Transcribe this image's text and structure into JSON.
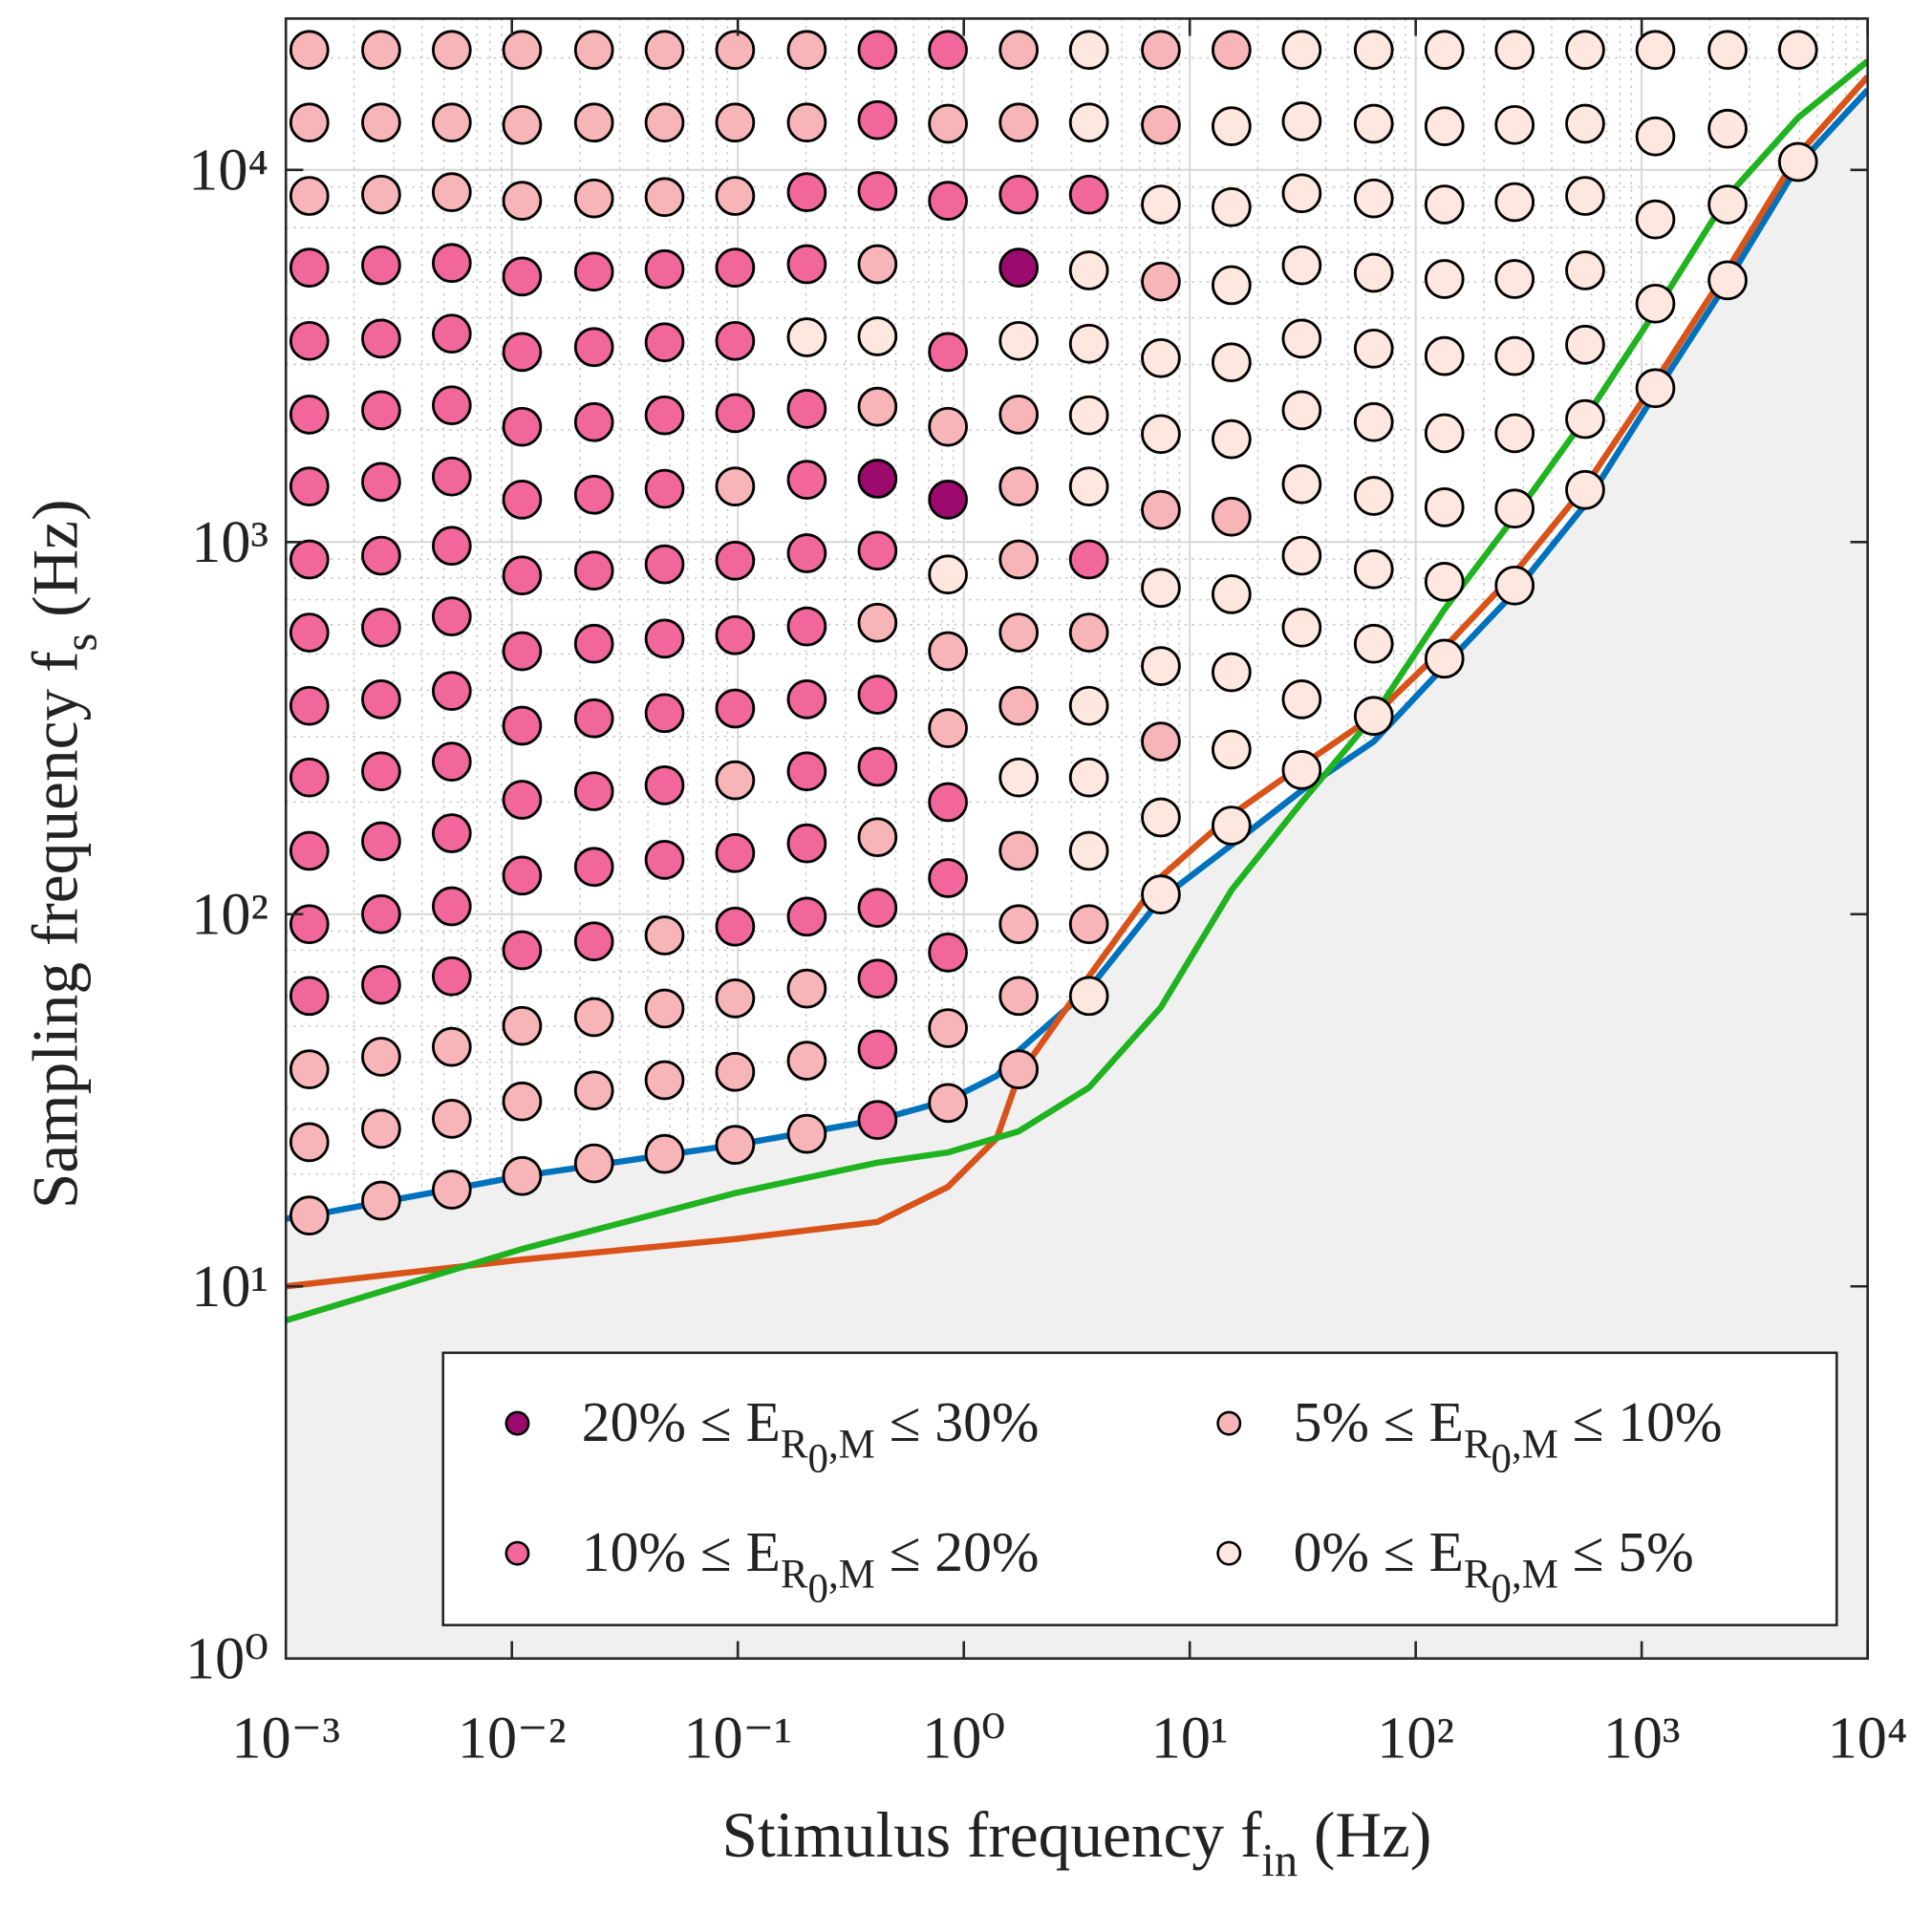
{
  "chart_data": {
    "type": "scatter",
    "xlabel": [
      {
        "text": "Stimulus frequency f"
      },
      {
        "text": "in",
        "sub": 1
      },
      {
        "text": " (Hz)"
      }
    ],
    "ylabel": [
      {
        "text": "Sampling frequency f"
      },
      {
        "text": "s",
        "sub": 1
      },
      {
        "text": " (Hz)"
      }
    ],
    "xscale": "log",
    "yscale": "log",
    "xlim": [
      0.001,
      10000
    ],
    "ylim": [
      1,
      25500
    ],
    "xticks": [
      {
        "value": 0.001,
        "label": "10⁻³"
      },
      {
        "value": 0.01,
        "label": "10⁻²"
      },
      {
        "value": 0.1,
        "label": "10⁻¹"
      },
      {
        "value": 1,
        "label": "10⁰"
      },
      {
        "value": 10,
        "label": "10¹"
      },
      {
        "value": 100,
        "label": "10²"
      },
      {
        "value": 1000,
        "label": "10³"
      },
      {
        "value": 10000,
        "label": "10⁴"
      }
    ],
    "yticks": [
      {
        "value": 1,
        "label": "10⁰"
      },
      {
        "value": 10,
        "label": "10¹"
      },
      {
        "value": 100,
        "label": "10²"
      },
      {
        "value": 1000,
        "label": "10³"
      },
      {
        "value": 10000,
        "label": "10⁴"
      }
    ],
    "grid": true,
    "minor_grid": true,
    "legend": {
      "loc": "southeast",
      "columns": 2
    },
    "marker_edge": "#000000",
    "series": [
      {
        "name": [
          {
            "text": "20% ≤ E"
          },
          {
            "text": "R",
            "sub": 1
          },
          {
            "text": "0",
            "sub": 2
          },
          {
            "text": ",M",
            "sub": 1
          },
          {
            "text": " ≤ 30%"
          }
        ],
        "color": "#9c0a6e",
        "x": [
          0.415,
          0.851,
          1.75
        ],
        "values": [
          1480,
          1300,
          5460
        ]
      },
      {
        "name": [
          {
            "text": "10% ≤ E"
          },
          {
            "text": "R",
            "sub": 1
          },
          {
            "text": "0",
            "sub": 2
          },
          {
            "text": ",M",
            "sub": 1
          },
          {
            "text": " ≤ 20%"
          }
        ],
        "color": "#f2679b",
        "x": [
          0.00127,
          0.00127,
          0.00127,
          0.00127,
          0.00127,
          0.00127,
          0.00127,
          0.00127,
          0.00127,
          0.00127,
          0.00127,
          0.00264,
          0.00264,
          0.00264,
          0.00264,
          0.00264,
          0.00264,
          0.00264,
          0.00264,
          0.00264,
          0.00264,
          0.00264,
          0.00542,
          0.00542,
          0.00542,
          0.00542,
          0.00542,
          0.00542,
          0.00542,
          0.00542,
          0.00542,
          0.00542,
          0.00542,
          0.0111,
          0.0111,
          0.0111,
          0.0111,
          0.0111,
          0.0111,
          0.0111,
          0.0111,
          0.0111,
          0.0111,
          0.0231,
          0.0231,
          0.0231,
          0.0231,
          0.0231,
          0.0231,
          0.0231,
          0.0231,
          0.0231,
          0.0231,
          0.0474,
          0.0474,
          0.0474,
          0.0474,
          0.0474,
          0.0474,
          0.0474,
          0.0474,
          0.0474,
          0.0973,
          0.0973,
          0.0973,
          0.0973,
          0.0973,
          0.0973,
          0.0973,
          0.0973,
          0.202,
          0.202,
          0.202,
          0.202,
          0.202,
          0.202,
          0.202,
          0.202,
          0.202,
          0.202,
          0.415,
          0.415,
          0.415,
          0.415,
          0.415,
          0.415,
          0.415,
          0.415,
          0.415,
          0.415,
          0.851,
          0.851,
          0.851,
          0.851,
          0.851,
          0.851,
          1.75,
          3.58,
          3.58
        ],
        "values": [
          5460,
          3470,
          2200,
          1410,
          898,
          571,
          363,
          233,
          148,
          94,
          60.3,
          5540,
          3520,
          2260,
          1450,
          919,
          589,
          378,
          242,
          157,
          100,
          64.6,
          5620,
          3630,
          2330,
          1500,
          977,
          631,
          398,
          257,
          165,
          105,
          68.1,
          5170,
          3240,
          2040,
          1300,
          813,
          509,
          321,
          203,
          127,
          80,
          5330,
          3340,
          2100,
          1340,
          838,
          533,
          336,
          214,
          134,
          84.5,
          5410,
          3440,
          2190,
          1390,
          871,
          550,
          347,
          222,
          140,
          5460,
          3470,
          2220,
          891,
          562,
          357,
          146,
          92.6,
          8710,
          5580,
          2280,
          1470,
          933,
          593,
          378,
          242,
          155,
          98.5,
          21000,
          13600,
          8770,
          948,
          389,
          249,
          104,
          67.1,
          43.3,
          28,
          21000,
          8260,
          3240,
          200,
          125,
          78.9,
          8580,
          8580,
          898
        ]
      },
      {
        "name": [
          {
            "text": "5% ≤ E"
          },
          {
            "text": "R",
            "sub": 1
          },
          {
            "text": "0",
            "sub": 2
          },
          {
            "text": ",M",
            "sub": 1
          },
          {
            "text": " ≤ 10%"
          }
        ],
        "color": "#f8b5b8",
        "x": [
          0.00127,
          0.00127,
          0.00127,
          0.00127,
          0.00127,
          0.00127,
          0.00264,
          0.00264,
          0.00264,
          0.00264,
          0.00264,
          0.00264,
          0.00542,
          0.00542,
          0.00542,
          0.00542,
          0.00542,
          0.00542,
          0.0111,
          0.0111,
          0.0111,
          0.0111,
          0.0111,
          0.0111,
          0.0231,
          0.0231,
          0.0231,
          0.0231,
          0.0231,
          0.0231,
          0.0474,
          0.0474,
          0.0474,
          0.0474,
          0.0474,
          0.0474,
          0.0474,
          0.0973,
          0.0973,
          0.0973,
          0.0973,
          0.0973,
          0.0973,
          0.0973,
          0.0973,
          0.202,
          0.202,
          0.202,
          0.202,
          0.202,
          0.415,
          0.415,
          0.415,
          0.415,
          0.851,
          0.851,
          0.851,
          0.851,
          0.851,
          0.851,
          1.75,
          1.75,
          1.75,
          1.75,
          1.75,
          1.75,
          1.75,
          1.75,
          1.75,
          1.75,
          1.75,
          3.58,
          3.58,
          7.45,
          7.45,
          7.45,
          7.45,
          7.45,
          15.3,
          15.3
        ],
        "values": [
          21000,
          13400,
          8510,
          38.3,
          24.4,
          15.5,
          21000,
          13400,
          8580,
          41.4,
          26.5,
          17,
          21000,
          13400,
          8710,
          44,
          28.2,
          18.2,
          21000,
          13200,
          8260,
          50.1,
          31.4,
          19.8,
          21000,
          13400,
          8380,
          52.9,
          33.6,
          21.4,
          21000,
          13400,
          8450,
          87.7,
          55.8,
          35.8,
          22.7,
          21000,
          13400,
          8510,
          1410,
          229,
          59.4,
          37.7,
          24,
          21000,
          13400,
          63.1,
          40.4,
          25.7,
          5580,
          2310,
          607,
          161,
          13300,
          2040,
          509,
          316,
          49.4,
          31.1,
          21000,
          13400,
          2200,
          1410,
          898,
          571,
          363,
          148,
          94,
          60.3,
          38.3,
          571,
          94,
          21000,
          13200,
          5010,
          1220,
          291,
          21000,
          1170
        ]
      },
      {
        "name": [
          {
            "text": "0% ≤ E"
          },
          {
            "text": "R",
            "sub": 1
          },
          {
            "text": "0",
            "sub": 2
          },
          {
            "text": ",M",
            "sub": 1
          },
          {
            "text": " ≤ 5%"
          }
        ],
        "color": "#fde7df",
        "x": [
          0.202,
          0.415,
          0.851,
          1.75,
          1.75,
          3.58,
          3.58,
          3.58,
          3.58,
          3.58,
          3.58,
          3.58,
          3.58,
          3.58,
          3.58,
          7.45,
          7.45,
          7.45,
          7.45,
          7.45,
          7.45,
          7.45,
          15.3,
          15.3,
          15.3,
          15.3,
          15.3,
          15.3,
          15.3,
          15.3,
          15.3,
          31.3,
          31.3,
          31.3,
          31.3,
          31.3,
          31.3,
          31.3,
          31.3,
          31.3,
          31.3,
          31.3,
          65.2,
          65.2,
          65.2,
          65.2,
          65.2,
          65.2,
          65.2,
          65.2,
          65.2,
          65.2,
          134,
          134,
          134,
          134,
          134,
          134,
          134,
          134,
          134,
          274,
          274,
          274,
          274,
          274,
          274,
          274,
          274,
          562,
          562,
          562,
          562,
          562,
          562,
          562,
          1150,
          1150,
          1150,
          1150,
          1150,
          2400,
          2400,
          2400,
          2400,
          4920,
          4920
        ],
        "values": [
          3550,
          3570,
          818,
          3470,
          233,
          21000,
          13400,
          5370,
          3410,
          2190,
          1410,
          363,
          233,
          148,
          60.3,
          8070,
          3120,
          1950,
          753,
          464,
          182,
          113,
          13100,
          7940,
          4900,
          3040,
          1890,
          724,
          447,
          277,
          173,
          21000,
          13500,
          8650,
          5540,
          3520,
          2260,
          1430,
          919,
          589,
          378,
          244,
          21000,
          13300,
          8380,
          5290,
          3310,
          2100,
          1330,
          845,
          533,
          341,
          21000,
          13100,
          8070,
          5090,
          3160,
          1960,
          1240,
          782,
          486,
          21000,
          13200,
          8190,
          5090,
          3160,
          1960,
          1230,
          764,
          21000,
          13300,
          8510,
          5370,
          3390,
          2140,
          1380,
          21000,
          12300,
          7360,
          4370,
          2590,
          21000,
          12900,
          8070,
          5050,
          21000,
          10500
        ]
      }
    ],
    "lines": [
      {
        "color": "#0072bd",
        "fill": "#f0f0f0",
        "x": [
          0.001,
          0.00127,
          0.0111,
          0.0973,
          0.415,
          0.851,
          1.4,
          1.75,
          3.58,
          7.45,
          16.3,
          31.3,
          65.2,
          134,
          274,
          562,
          1150,
          2400,
          4920,
          10000
        ],
        "values": [
          15.2,
          15.5,
          19.8,
          24,
          28,
          31.6,
          36.8,
          43,
          63,
          110,
          158,
          215,
          291,
          464,
          733,
          1260,
          2510,
          5010,
          10300,
          16400
        ]
      },
      {
        "color": "#d95319",
        "x": [
          0.001,
          0.0111,
          0.0973,
          0.415,
          0.851,
          1.4,
          1.75,
          3.58,
          7.45,
          15.3,
          31.3,
          65.2,
          134,
          274,
          562,
          1150,
          2400,
          4920,
          10000
        ],
        "values": [
          10,
          11.8,
          13.4,
          14.9,
          18.5,
          25,
          36.8,
          68,
          126,
          185,
          251,
          341,
          520,
          825,
          1410,
          2700,
          5400,
          11000,
          17800
        ]
      },
      {
        "color": "#1fb31f",
        "x": [
          0.001,
          0.0111,
          0.0973,
          0.415,
          0.851,
          1.75,
          3.58,
          7.45,
          15.3,
          31.3,
          65.2,
          134,
          274,
          562,
          1150,
          2400,
          4920,
          10000
        ],
        "values": [
          8.1,
          12.6,
          17.8,
          21.5,
          22.9,
          26.1,
          34.2,
          56.2,
          116,
          200,
          341,
          659,
          1170,
          2150,
          4170,
          8490,
          13800,
          19600
        ]
      }
    ]
  }
}
